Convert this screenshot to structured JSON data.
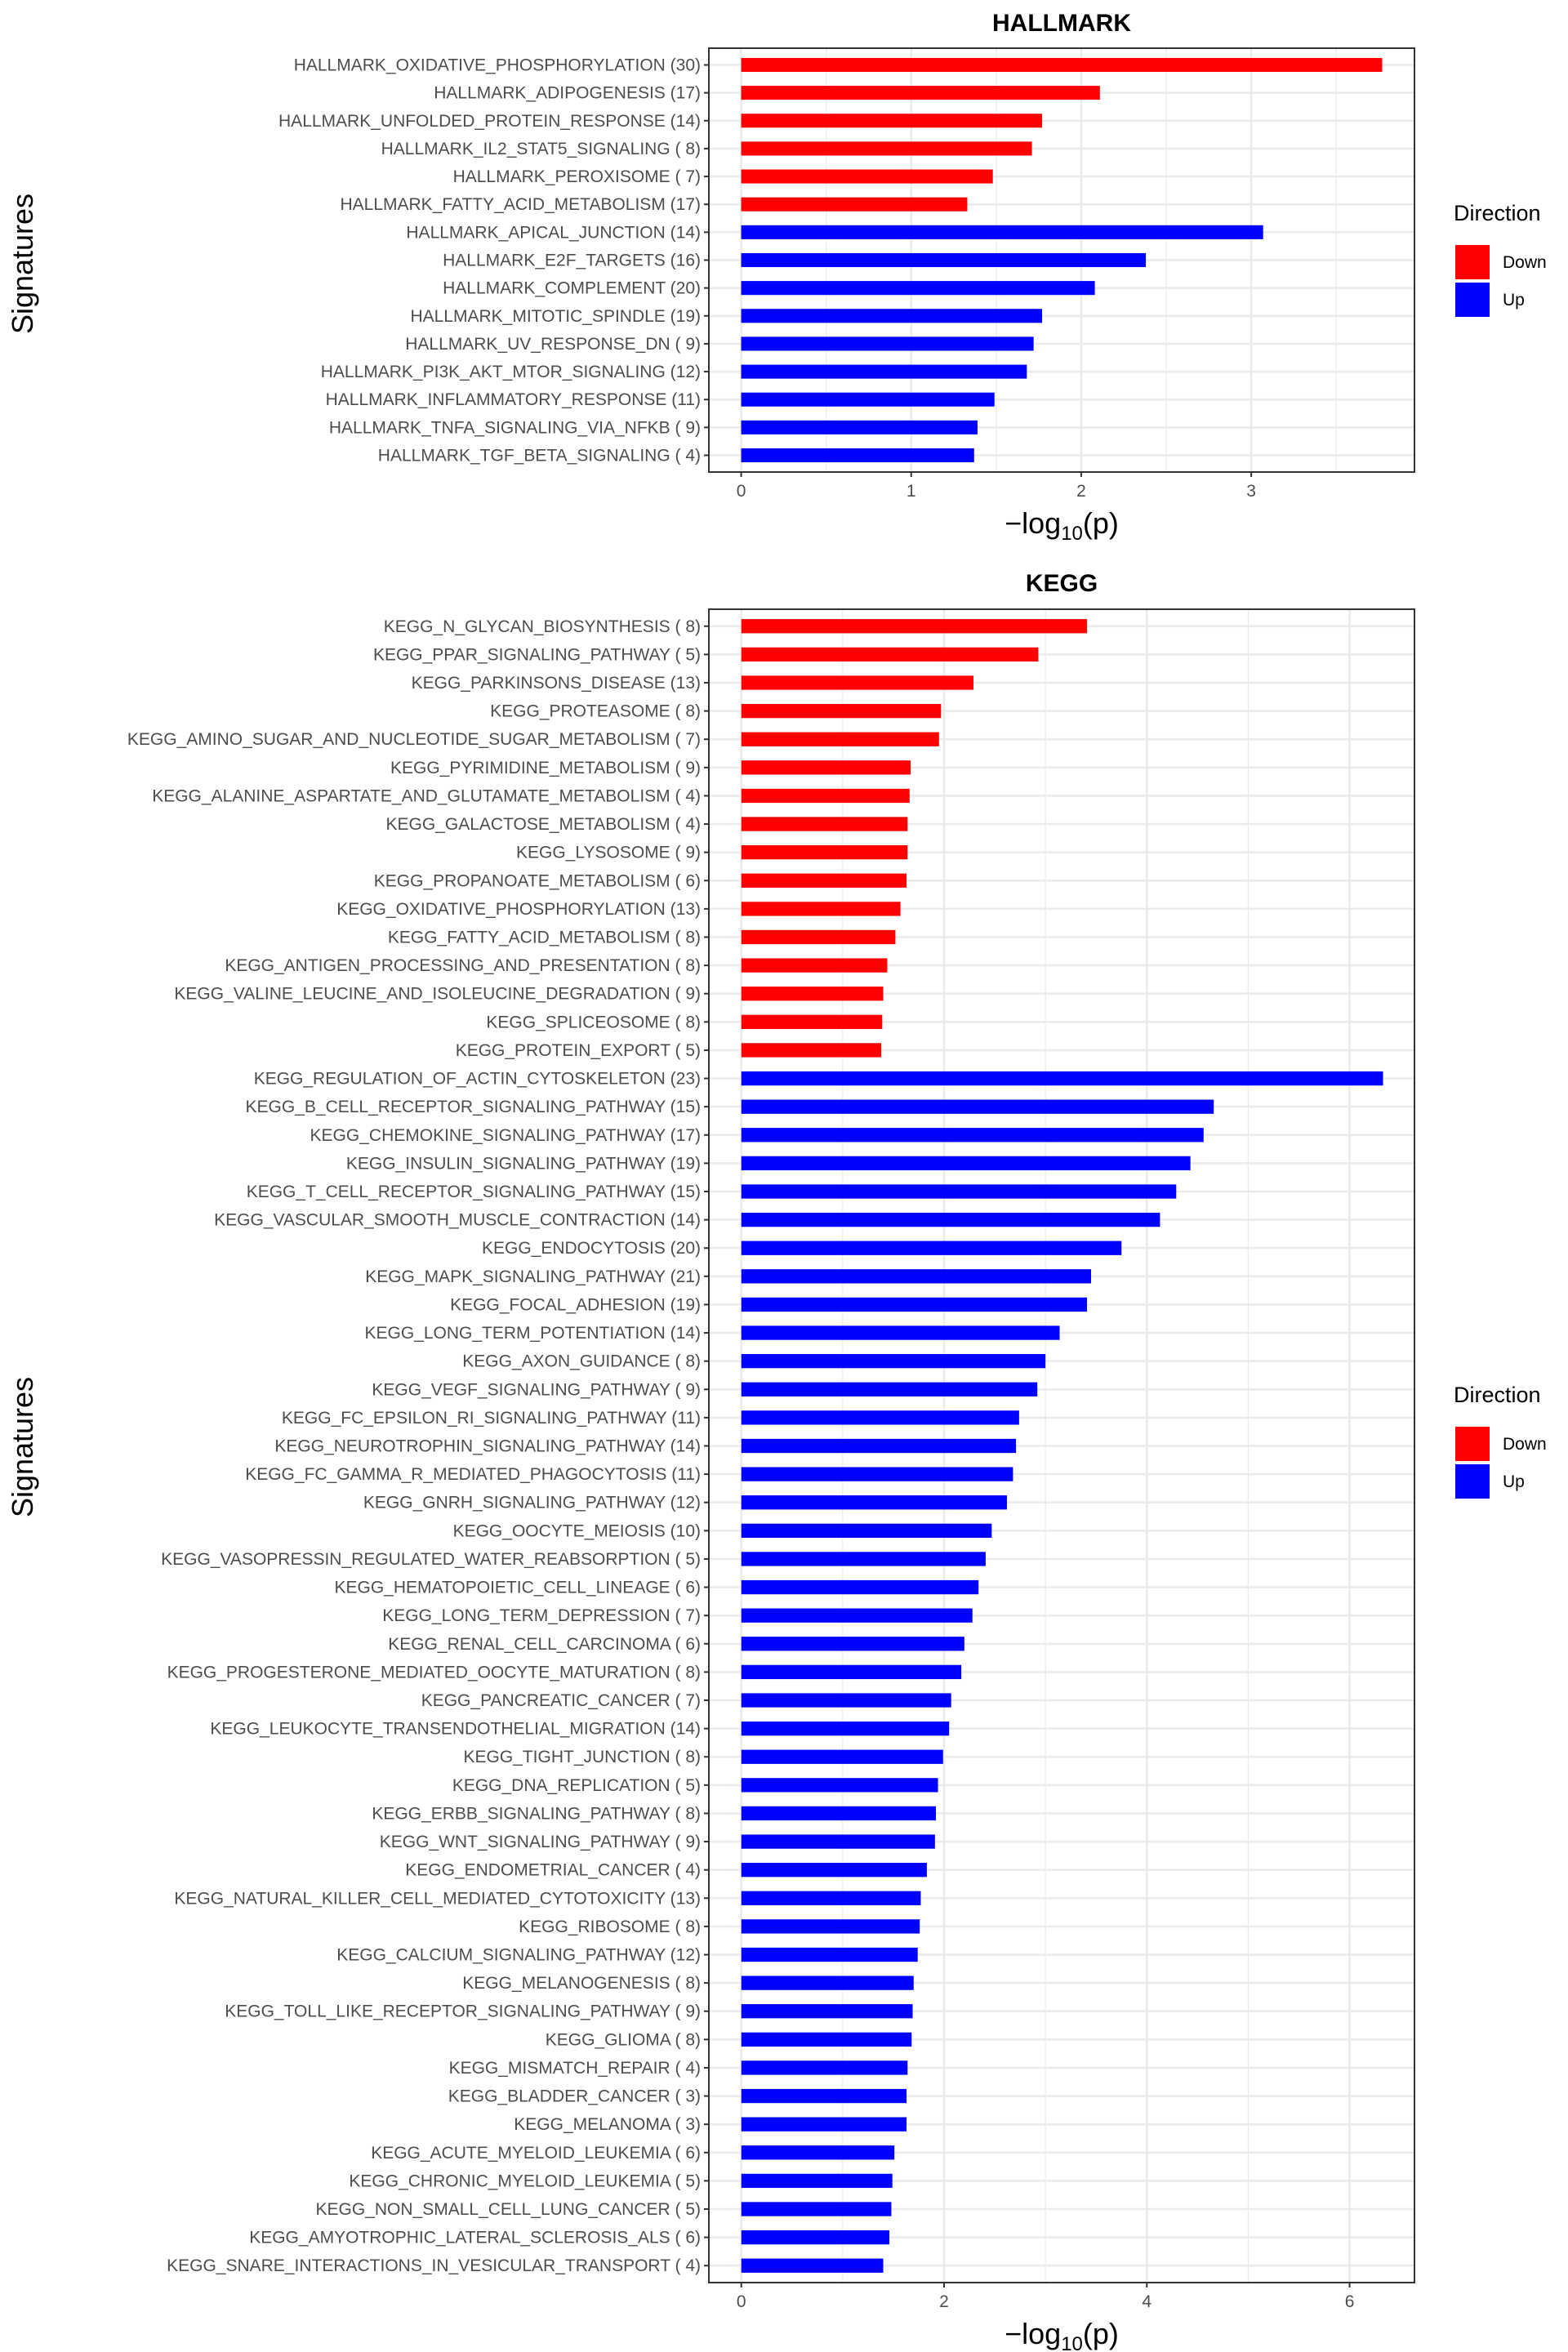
{
  "chart_data": [
    {
      "type": "bar",
      "orientation": "horizontal",
      "title": "HALLMARK",
      "xlabel": "-log10(p)",
      "xlabel_parts": {
        "prefix": "−log",
        "sub": "10",
        "suffix": "(p)"
      },
      "ylabel": "Signatures",
      "xlim": [
        -0.19,
        3.96
      ],
      "xticks": [
        0,
        1,
        2,
        3
      ],
      "grid": true,
      "legend": {
        "title": "Direction",
        "position": "right",
        "entries": [
          {
            "label": "Down",
            "color": "#ff0000"
          },
          {
            "label": "Up",
            "color": "#0000ff"
          }
        ]
      },
      "categories": [
        "HALLMARK_OXIDATIVE_PHOSPHORYLATION (30)",
        "HALLMARK_ADIPOGENESIS (17)",
        "HALLMARK_UNFOLDED_PROTEIN_RESPONSE (14)",
        "HALLMARK_IL2_STAT5_SIGNALING ( 8)",
        "HALLMARK_PEROXISOME ( 7)",
        "HALLMARK_FATTY_ACID_METABOLISM (17)",
        "HALLMARK_APICAL_JUNCTION (14)",
        "HALLMARK_E2F_TARGETS (16)",
        "HALLMARK_COMPLEMENT (20)",
        "HALLMARK_MITOTIC_SPINDLE (19)",
        "HALLMARK_UV_RESPONSE_DN ( 9)",
        "HALLMARK_PI3K_AKT_MTOR_SIGNALING (12)",
        "HALLMARK_INFLAMMATORY_RESPONSE (11)",
        "HALLMARK_TNFA_SIGNALING_VIA_NFKB ( 9)",
        "HALLMARK_TGF_BETA_SIGNALING ( 4)"
      ],
      "values": [
        3.77,
        2.11,
        1.77,
        1.71,
        1.48,
        1.33,
        3.07,
        2.38,
        2.08,
        1.77,
        1.72,
        1.68,
        1.49,
        1.39,
        1.37
      ],
      "direction": [
        "Down",
        "Down",
        "Down",
        "Down",
        "Down",
        "Down",
        "Up",
        "Up",
        "Up",
        "Up",
        "Up",
        "Up",
        "Up",
        "Up",
        "Up"
      ]
    },
    {
      "type": "bar",
      "orientation": "horizontal",
      "title": "KEGG",
      "xlabel": "-log10(p)",
      "xlabel_parts": {
        "prefix": "−log",
        "sub": "10",
        "suffix": "(p)"
      },
      "ylabel": "Signatures",
      "xlim": [
        -0.32,
        6.64
      ],
      "xticks": [
        0,
        2,
        4,
        6
      ],
      "grid": true,
      "legend": {
        "title": "Direction",
        "position": "right",
        "entries": [
          {
            "label": "Down",
            "color": "#ff0000"
          },
          {
            "label": "Up",
            "color": "#0000ff"
          }
        ]
      },
      "categories": [
        "KEGG_N_GLYCAN_BIOSYNTHESIS ( 8)",
        "KEGG_PPAR_SIGNALING_PATHWAY ( 5)",
        "KEGG_PARKINSONS_DISEASE (13)",
        "KEGG_PROTEASOME ( 8)",
        "KEGG_AMINO_SUGAR_AND_NUCLEOTIDE_SUGAR_METABOLISM ( 7)",
        "KEGG_PYRIMIDINE_METABOLISM ( 9)",
        "KEGG_ALANINE_ASPARTATE_AND_GLUTAMATE_METABOLISM ( 4)",
        "KEGG_GALACTOSE_METABOLISM ( 4)",
        "KEGG_LYSOSOME ( 9)",
        "KEGG_PROPANOATE_METABOLISM ( 6)",
        "KEGG_OXIDATIVE_PHOSPHORYLATION (13)",
        "KEGG_FATTY_ACID_METABOLISM ( 8)",
        "KEGG_ANTIGEN_PROCESSING_AND_PRESENTATION ( 8)",
        "KEGG_VALINE_LEUCINE_AND_ISOLEUCINE_DEGRADATION ( 9)",
        "KEGG_SPLICEOSOME ( 8)",
        "KEGG_PROTEIN_EXPORT ( 5)",
        "KEGG_REGULATION_OF_ACTIN_CYTOSKELETON (23)",
        "KEGG_B_CELL_RECEPTOR_SIGNALING_PATHWAY (15)",
        "KEGG_CHEMOKINE_SIGNALING_PATHWAY (17)",
        "KEGG_INSULIN_SIGNALING_PATHWAY (19)",
        "KEGG_T_CELL_RECEPTOR_SIGNALING_PATHWAY (15)",
        "KEGG_VASCULAR_SMOOTH_MUSCLE_CONTRACTION (14)",
        "KEGG_ENDOCYTOSIS (20)",
        "KEGG_MAPK_SIGNALING_PATHWAY (21)",
        "KEGG_FOCAL_ADHESION (19)",
        "KEGG_LONG_TERM_POTENTIATION (14)",
        "KEGG_AXON_GUIDANCE ( 8)",
        "KEGG_VEGF_SIGNALING_PATHWAY ( 9)",
        "KEGG_FC_EPSILON_RI_SIGNALING_PATHWAY (11)",
        "KEGG_NEUROTROPHIN_SIGNALING_PATHWAY (14)",
        "KEGG_FC_GAMMA_R_MEDIATED_PHAGOCYTOSIS (11)",
        "KEGG_GNRH_SIGNALING_PATHWAY (12)",
        "KEGG_OOCYTE_MEIOSIS (10)",
        "KEGG_VASOPRESSIN_REGULATED_WATER_REABSORPTION ( 5)",
        "KEGG_HEMATOPOIETIC_CELL_LINEAGE ( 6)",
        "KEGG_LONG_TERM_DEPRESSION ( 7)",
        "KEGG_RENAL_CELL_CARCINOMA ( 6)",
        "KEGG_PROGESTERONE_MEDIATED_OOCYTE_MATURATION ( 8)",
        "KEGG_PANCREATIC_CANCER ( 7)",
        "KEGG_LEUKOCYTE_TRANSENDOTHELIAL_MIGRATION (14)",
        "KEGG_TIGHT_JUNCTION ( 8)",
        "KEGG_DNA_REPLICATION ( 5)",
        "KEGG_ERBB_SIGNALING_PATHWAY ( 8)",
        "KEGG_WNT_SIGNALING_PATHWAY ( 9)",
        "KEGG_ENDOMETRIAL_CANCER ( 4)",
        "KEGG_NATURAL_KILLER_CELL_MEDIATED_CYTOTOXICITY (13)",
        "KEGG_RIBOSOME ( 8)",
        "KEGG_CALCIUM_SIGNALING_PATHWAY (12)",
        "KEGG_MELANOGENESIS ( 8)",
        "KEGG_TOLL_LIKE_RECEPTOR_SIGNALING_PATHWAY ( 9)",
        "KEGG_GLIOMA ( 8)",
        "KEGG_MISMATCH_REPAIR ( 4)",
        "KEGG_BLADDER_CANCER ( 3)",
        "KEGG_MELANOMA ( 3)",
        "KEGG_ACUTE_MYELOID_LEUKEMIA ( 6)",
        "KEGG_CHRONIC_MYELOID_LEUKEMIA ( 5)",
        "KEGG_NON_SMALL_CELL_LUNG_CANCER ( 5)",
        "KEGG_AMYOTROPHIC_LATERAL_SCLEROSIS_ALS ( 6)",
        "KEGG_SNARE_INTERACTIONS_IN_VESICULAR_TRANSPORT ( 4)"
      ],
      "values": [
        3.41,
        2.93,
        2.29,
        1.97,
        1.95,
        1.67,
        1.66,
        1.64,
        1.64,
        1.63,
        1.57,
        1.52,
        1.44,
        1.4,
        1.39,
        1.38,
        6.33,
        4.66,
        4.56,
        4.43,
        4.29,
        4.13,
        3.75,
        3.45,
        3.41,
        3.14,
        3.0,
        2.92,
        2.74,
        2.71,
        2.68,
        2.62,
        2.47,
        2.41,
        2.34,
        2.28,
        2.2,
        2.17,
        2.07,
        2.05,
        1.99,
        1.94,
        1.92,
        1.91,
        1.83,
        1.77,
        1.76,
        1.74,
        1.7,
        1.69,
        1.68,
        1.64,
        1.63,
        1.63,
        1.51,
        1.49,
        1.48,
        1.46,
        1.4
      ],
      "direction_down_count": 16
    }
  ]
}
